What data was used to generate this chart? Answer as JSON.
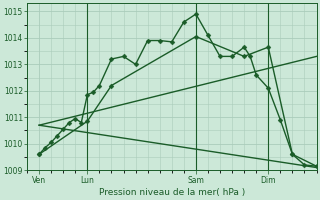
{
  "background_color": "#cce8d8",
  "grid_color": "#aaccbb",
  "line_color": "#1a5c28",
  "title": "Pression niveau de la mer( hPa )",
  "ylim": [
    1009.0,
    1015.3
  ],
  "yticks": [
    1009,
    1010,
    1011,
    1012,
    1013,
    1014,
    1015
  ],
  "xlim": [
    0,
    48
  ],
  "x_ticks_labels": [
    "Ven",
    "Lun",
    "Sam",
    "Dim"
  ],
  "x_ticks_pos": [
    2,
    10,
    28,
    40
  ],
  "vlines_x": [
    10,
    28,
    40
  ],
  "series1_x": [
    2,
    3,
    4,
    5,
    6,
    7,
    8,
    9,
    10,
    11,
    12,
    14,
    16,
    18,
    20,
    22,
    24,
    26,
    28,
    30,
    32,
    34,
    36,
    37,
    38,
    40,
    42,
    44,
    46,
    48
  ],
  "series1_y": [
    1009.6,
    1009.85,
    1010.05,
    1010.3,
    1010.55,
    1010.8,
    1010.95,
    1010.8,
    1011.85,
    1011.95,
    1012.2,
    1013.2,
    1013.3,
    1013.0,
    1013.9,
    1013.9,
    1013.85,
    1014.6,
    1014.9,
    1014.1,
    1013.3,
    1013.3,
    1013.65,
    1013.3,
    1012.6,
    1012.1,
    1010.9,
    1009.6,
    1009.2,
    1009.15
  ],
  "series2_x": [
    2,
    10,
    14,
    28,
    36,
    40,
    44,
    48
  ],
  "series2_y": [
    1009.6,
    1010.85,
    1012.2,
    1014.05,
    1013.3,
    1013.65,
    1009.6,
    1009.15
  ],
  "series3_x": [
    2,
    48
  ],
  "series3_y": [
    1010.7,
    1009.1
  ],
  "series4_x": [
    2,
    48
  ],
  "series4_y": [
    1010.7,
    1013.3
  ],
  "marker_size": 2.5,
  "linewidth": 1.0
}
